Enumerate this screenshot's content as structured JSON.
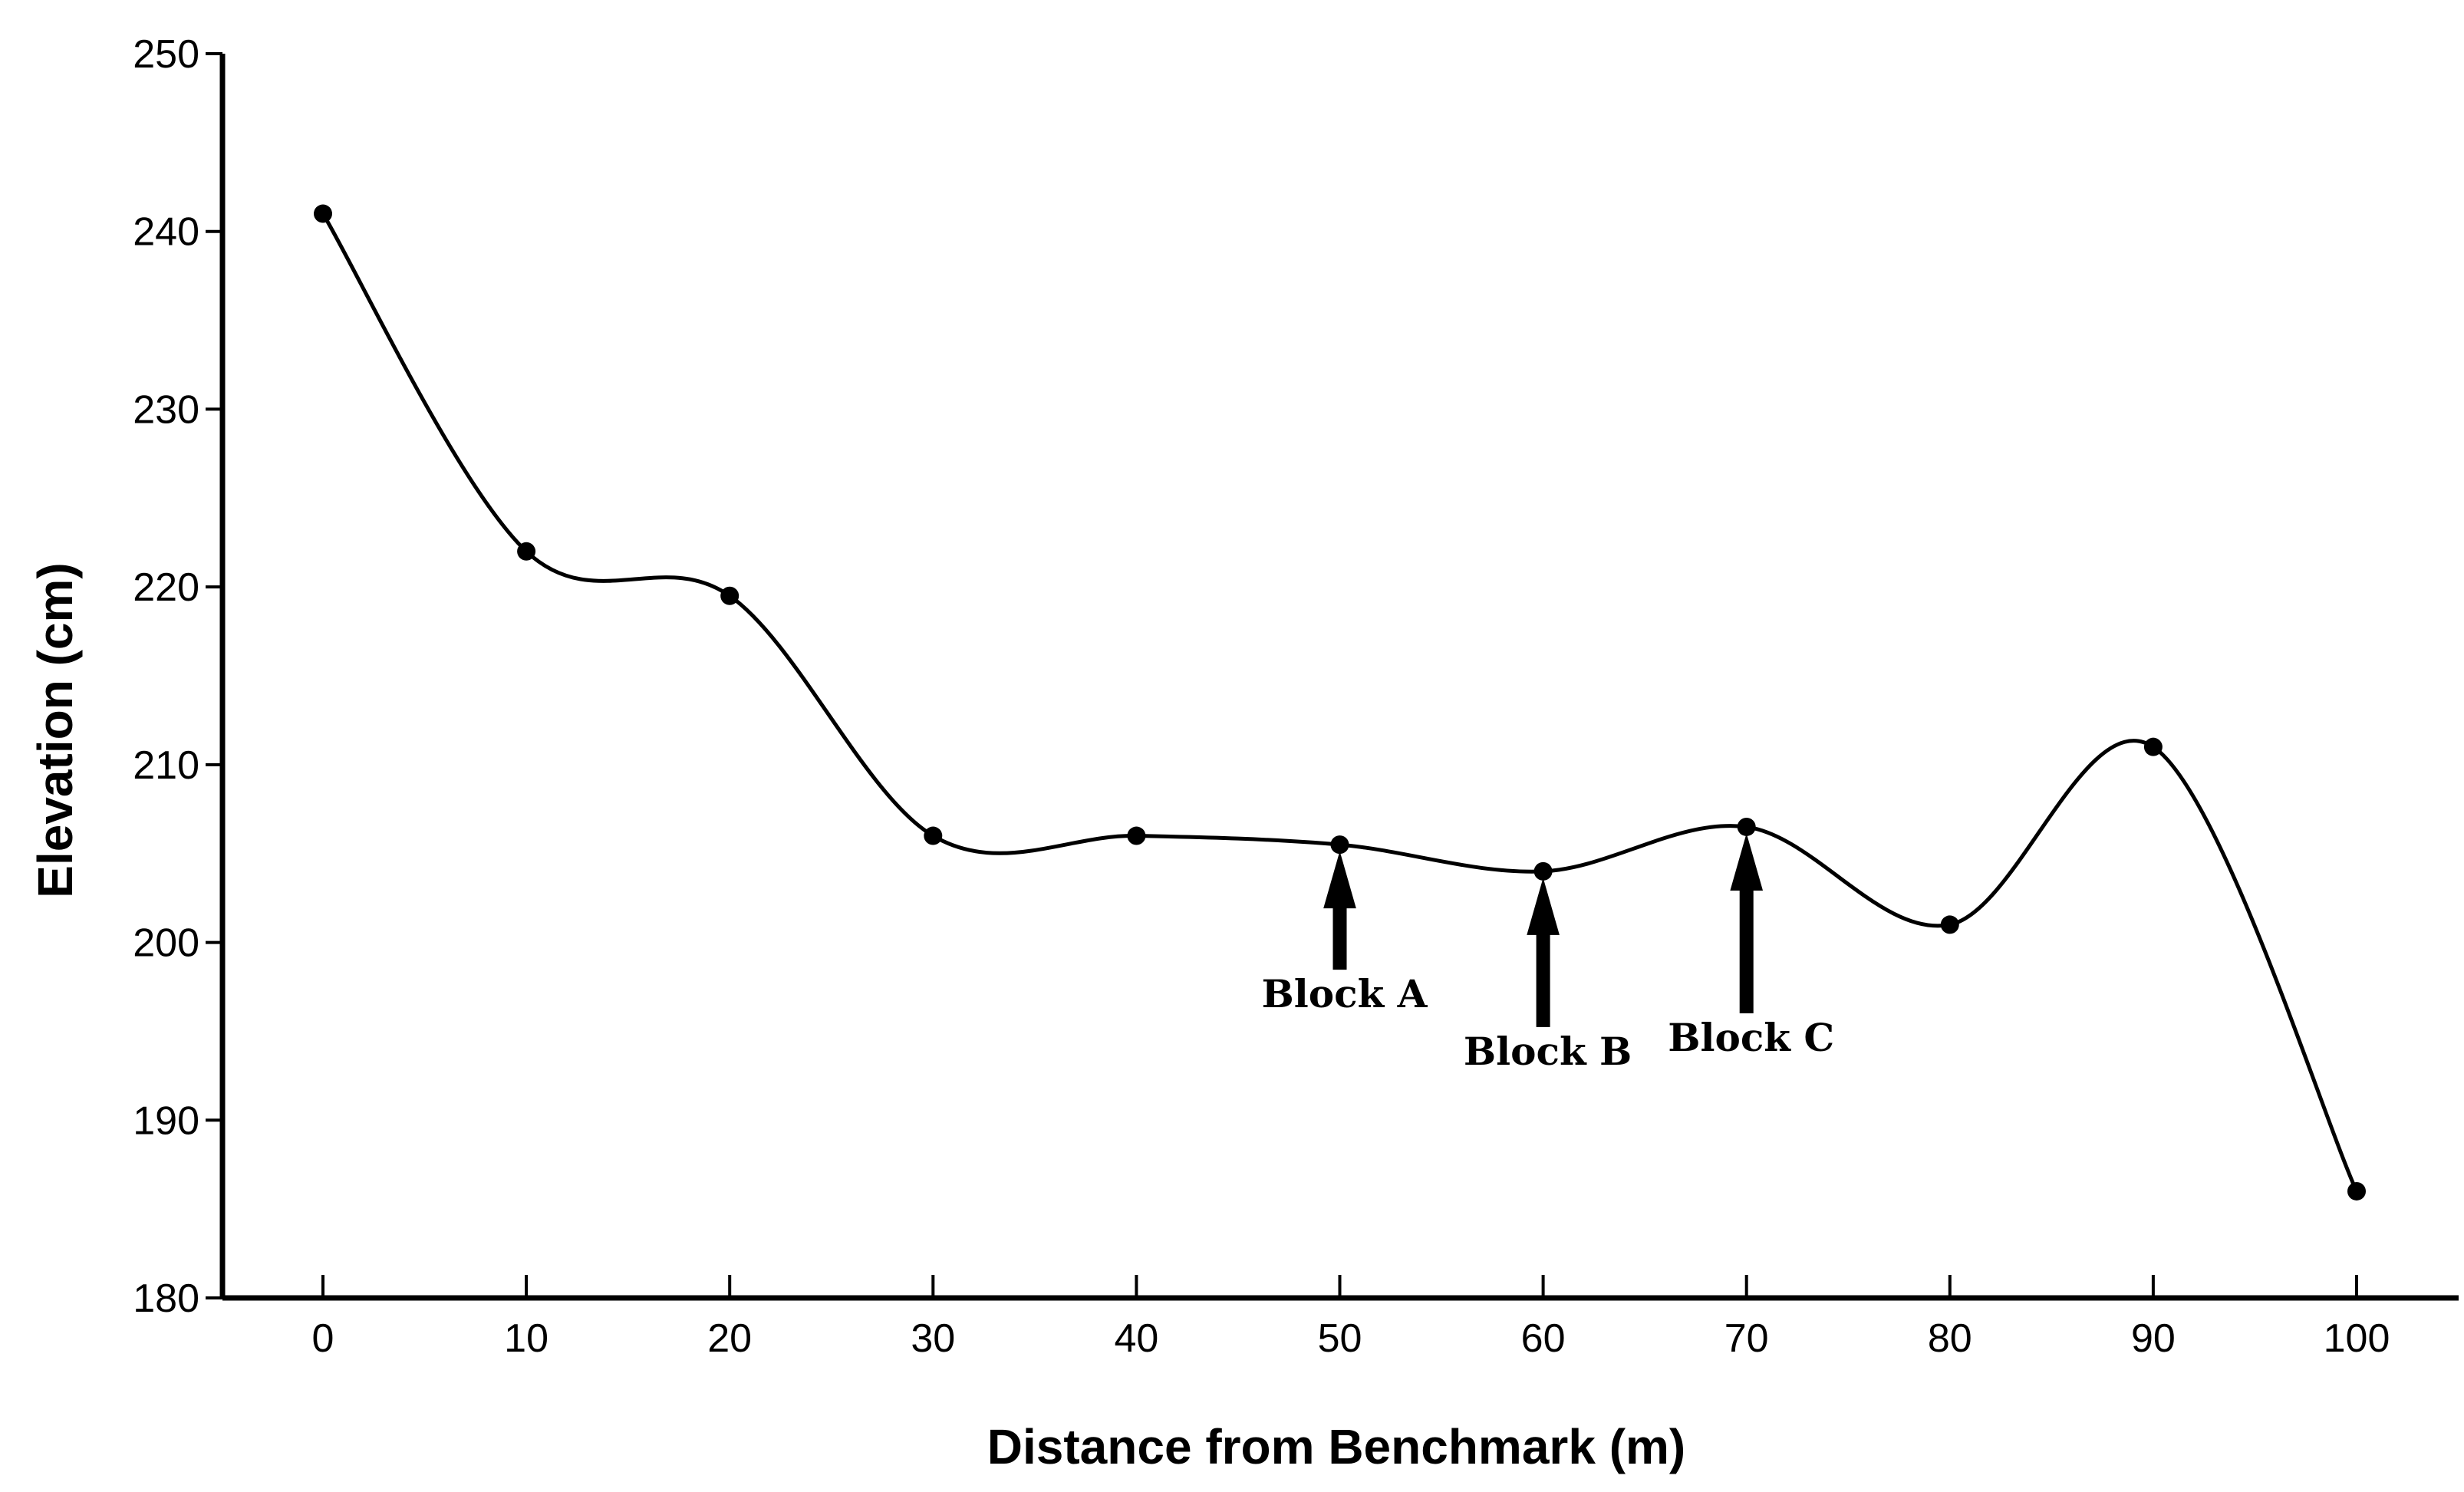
{
  "chart_data": {
    "type": "line",
    "title": "",
    "xlabel": "Distance from Benchmark (m)",
    "ylabel": "Elevation (cm)",
    "x": [
      0,
      10,
      20,
      30,
      40,
      50,
      60,
      70,
      80,
      90,
      100
    ],
    "series": [
      {
        "name": "Elevation",
        "values": [
          241,
          222,
          219.5,
          206,
          206,
          205.5,
          204,
          206.5,
          201,
          211,
          186
        ]
      }
    ],
    "xlim": [
      -5,
      105
    ],
    "ylim": [
      180,
      250
    ],
    "xticks": [
      "0",
      "10",
      "20",
      "30",
      "40",
      "50",
      "60",
      "70",
      "80",
      "90",
      "100"
    ],
    "yticks": [
      "180",
      "190",
      "200",
      "210",
      "220",
      "230",
      "240",
      "250"
    ],
    "grid": false,
    "line_color": "#000000",
    "annotations": [
      {
        "label": "Block A",
        "x": 50,
        "y": 205.5
      },
      {
        "label": "Block B",
        "x": 60,
        "y": 204
      },
      {
        "label": "Block C",
        "x": 70,
        "y": 206.5
      }
    ]
  }
}
